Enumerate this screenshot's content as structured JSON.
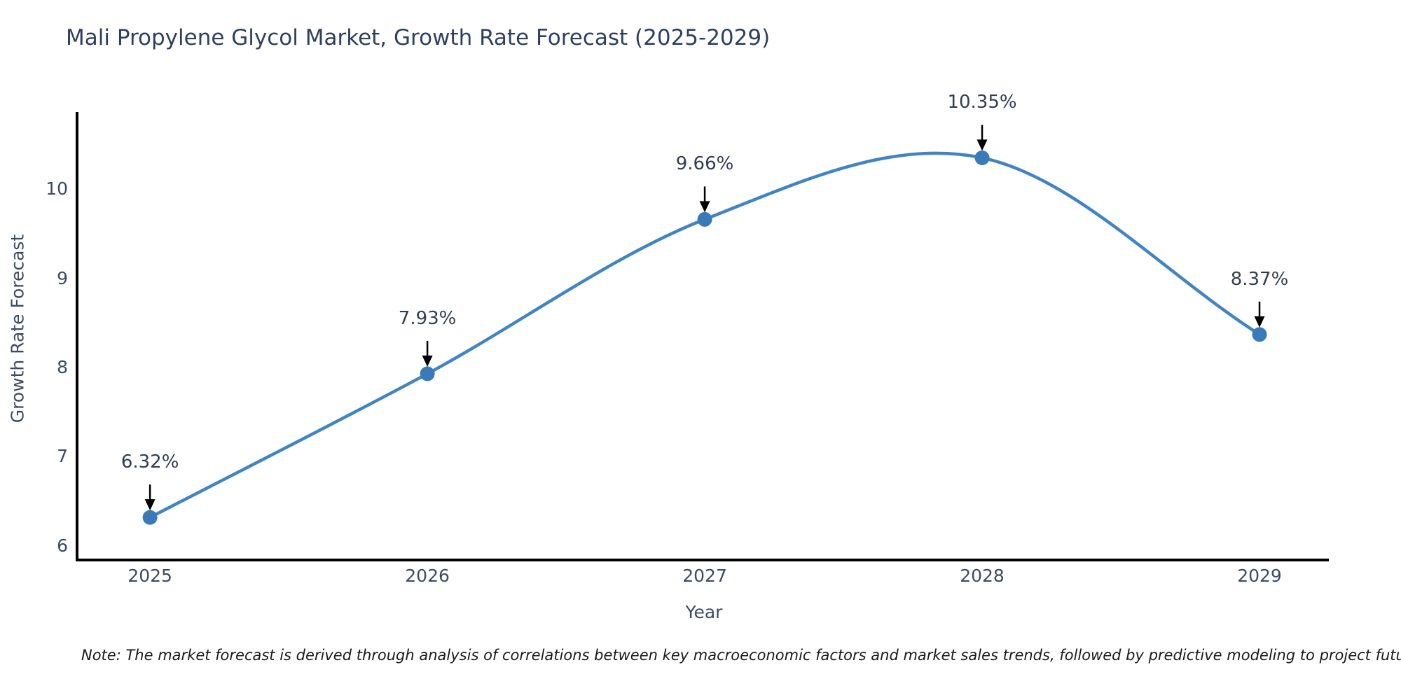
{
  "title": "Mali Propylene Glycol Market, Growth Rate Forecast (2025-2029)",
  "xlabel": "Year",
  "ylabel": "Growth Rate Forecast",
  "note": "Note: The market forecast is derived through analysis of correlations between key macroeconomic factors and market sales trends, followed by predictive modeling to project future sales",
  "chart_data": {
    "type": "line",
    "title": "Mali Propylene Glycol Market, Growth Rate Forecast (2025-2029)",
    "xlabel": "Year",
    "ylabel": "Growth Rate Forecast",
    "x": [
      2025,
      2026,
      2027,
      2028,
      2029
    ],
    "series": [
      {
        "name": "Growth Rate Forecast",
        "values": [
          6.32,
          7.93,
          9.66,
          10.35,
          8.37
        ]
      }
    ],
    "point_labels": [
      "6.32%",
      "7.93%",
      "9.66%",
      "10.35%",
      "8.37%"
    ],
    "x_ticks": [
      "2025",
      "2026",
      "2027",
      "2028",
      "2029"
    ],
    "y_ticks": [
      6,
      7,
      8,
      9,
      10
    ],
    "xlim": [
      2024.737,
      2029.25
    ],
    "ylim": [
      5.843,
      10.863
    ],
    "grid": false,
    "legend": "none",
    "smooth_spline": true,
    "annotations_have_arrows": true,
    "colors": {
      "line": "#4184c4",
      "marker": "#3a7ab9",
      "axis": "#000000",
      "arrow": "#000000",
      "title_text": "#2e3f5f",
      "axis_text": "#3d4a63",
      "annotation_text": "#333d52",
      "background": "#ffffff"
    }
  }
}
